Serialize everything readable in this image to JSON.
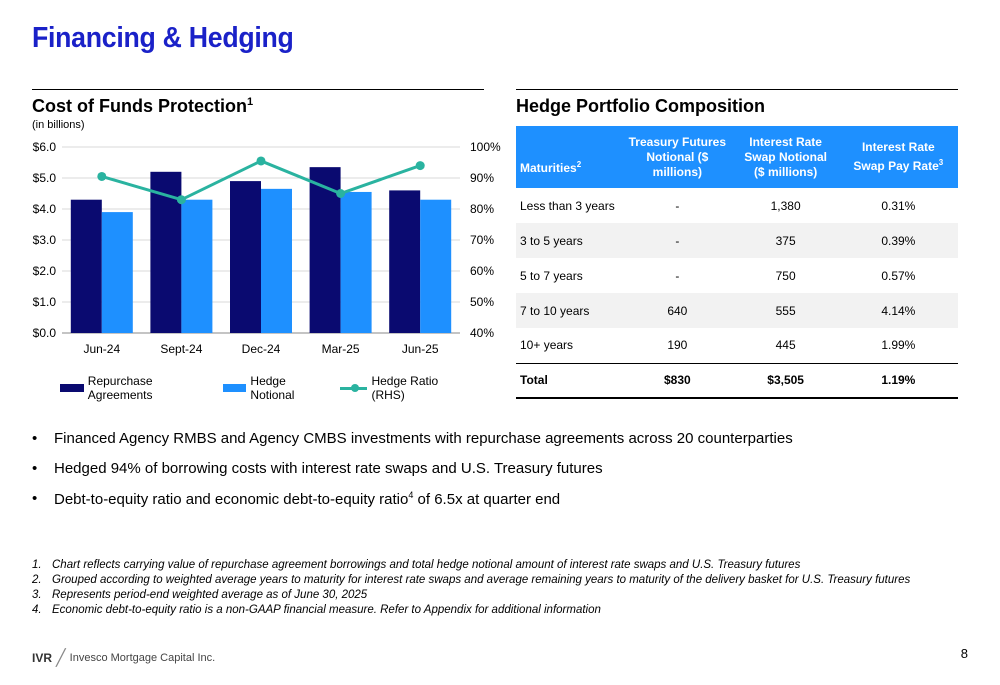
{
  "page": {
    "title": "Financing & Hedging",
    "page_number": "8"
  },
  "left": {
    "title": "Cost of Funds Protection",
    "title_sup": "1",
    "subnote": "(in billions)"
  },
  "right": {
    "title": "Hedge Portfolio Composition"
  },
  "chart_data": {
    "type": "bar",
    "categories": [
      "Jun-24",
      "Sept-24",
      "Dec-24",
      "Mar-25",
      "Jun-25"
    ],
    "series": [
      {
        "name": "Repurchase Agreements",
        "values": [
          4.3,
          5.2,
          4.9,
          5.35,
          4.6
        ],
        "color": "#0a0a70",
        "axis": "left"
      },
      {
        "name": "Hedge Notional",
        "values": [
          3.9,
          4.3,
          4.65,
          4.55,
          4.3
        ],
        "color": "#1e90ff",
        "axis": "left"
      },
      {
        "name": "Hedge Ratio (RHS)",
        "type": "line",
        "values": [
          90.5,
          83,
          95.5,
          85,
          94
        ],
        "color": "#2ab3a0",
        "axis": "right"
      }
    ],
    "ylim": [
      0,
      6
    ],
    "y2lim": [
      40,
      100
    ],
    "yticks": [
      "$0.0",
      "$1.0",
      "$2.0",
      "$3.0",
      "$4.0",
      "$5.0",
      "$6.0"
    ],
    "y2ticks": [
      "40%",
      "50%",
      "60%",
      "70%",
      "80%",
      "90%",
      "100%"
    ],
    "legend": "bottom"
  },
  "table": {
    "headers": [
      "Maturities",
      "Treasury Futures Notional ($ millions)",
      "Interest Rate Swap Notional ($ millions)",
      "Interest Rate Swap Pay Rate"
    ],
    "header_sups": [
      "2",
      "",
      "",
      "3"
    ],
    "rows": [
      [
        "Less than 3 years",
        "-",
        "1,380",
        "0.31%"
      ],
      [
        "3 to 5 years",
        "-",
        "375",
        "0.39%"
      ],
      [
        "5 to 7 years",
        "-",
        "750",
        "0.57%"
      ],
      [
        "7 to 10 years",
        "640",
        "555",
        "4.14%"
      ],
      [
        "10+ years",
        "190",
        "445",
        "1.99%"
      ],
      [
        "Total",
        "$830",
        "$3,505",
        "1.19%"
      ]
    ]
  },
  "bullets": [
    {
      "text": "Financed Agency RMBS and Agency CMBS investments with repurchase agreements across 20 counterparties"
    },
    {
      "text": "Hedged 94% of borrowing costs with interest rate swaps and U.S. Treasury futures"
    },
    {
      "text_before": "Debt-to-equity ratio and economic debt-to-equity ratio",
      "sup": "4",
      "text_after": " of 6.5x at quarter end"
    }
  ],
  "footnotes": [
    {
      "num": "1.",
      "text": "Chart reflects carrying value of repurchase agreement borrowings and total hedge notional amount of interest rate swaps and U.S. Treasury futures"
    },
    {
      "num": "2.",
      "text": "Grouped according to weighted average years to maturity for interest rate swaps and average remaining years to maturity of the delivery basket for U.S. Treasury futures"
    },
    {
      "num": "3.",
      "text": "Represents period-end weighted average as of June 30, 2025"
    },
    {
      "num": "4.",
      "text": "Economic debt-to-equity ratio is a non-GAAP financial measure. Refer to Appendix for additional information"
    }
  ],
  "footer": {
    "ivr": "IVR",
    "company": "Invesco Mortgage Capital Inc."
  }
}
